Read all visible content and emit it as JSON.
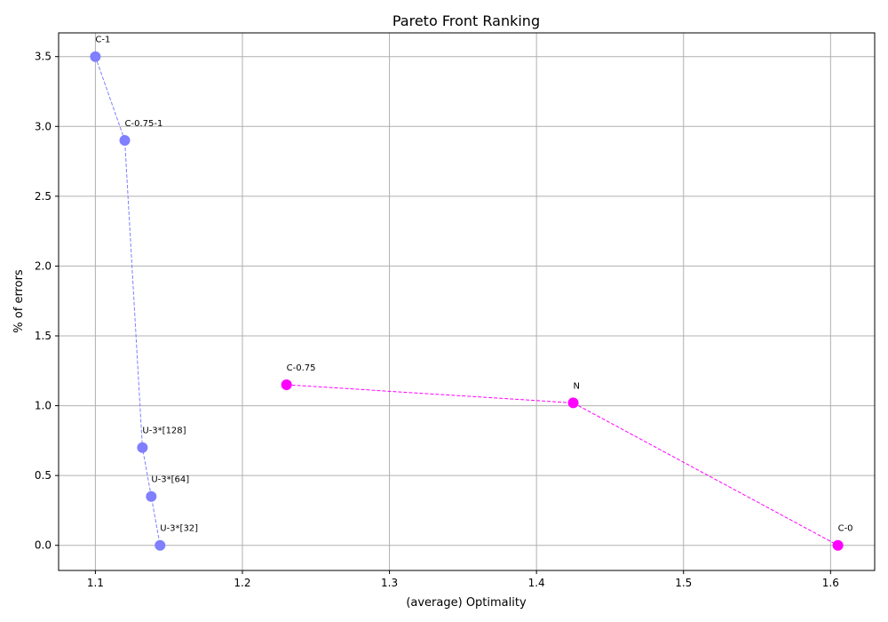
{
  "chart_data": {
    "type": "scatter",
    "title": "Pareto Front Ranking",
    "xlabel": "(average) Optimality",
    "ylabel": "% of errors",
    "xlim": [
      1.075,
      1.63
    ],
    "ylim": [
      -0.18,
      3.67
    ],
    "xticks": [
      "1.1",
      "1.2",
      "1.3",
      "1.4",
      "1.5",
      "1.6"
    ],
    "yticks": [
      "0.0",
      "0.5",
      "1.0",
      "1.5",
      "2.0",
      "2.5",
      "3.0",
      "3.5"
    ],
    "grid": true,
    "series": [
      {
        "color": "#7f7fff",
        "line_style": "dashed",
        "points": [
          {
            "label": "C-1",
            "x": 1.1,
            "y": 3.5
          },
          {
            "label": "C-0.75-1",
            "x": 1.12,
            "y": 2.9
          },
          {
            "label": "U-3*[128]",
            "x": 1.132,
            "y": 0.7
          },
          {
            "label": "U-3*[64]",
            "x": 1.138,
            "y": 0.35
          },
          {
            "label": "U-3*[32]",
            "x": 1.144,
            "y": 0.0
          }
        ]
      },
      {
        "color": "#ff00ff",
        "line_style": "dashed",
        "points": [
          {
            "label": "C-0.75",
            "x": 1.23,
            "y": 1.15
          },
          {
            "label": "N",
            "x": 1.425,
            "y": 1.02
          },
          {
            "label": "C-0",
            "x": 1.605,
            "y": 0.0
          }
        ]
      }
    ]
  }
}
